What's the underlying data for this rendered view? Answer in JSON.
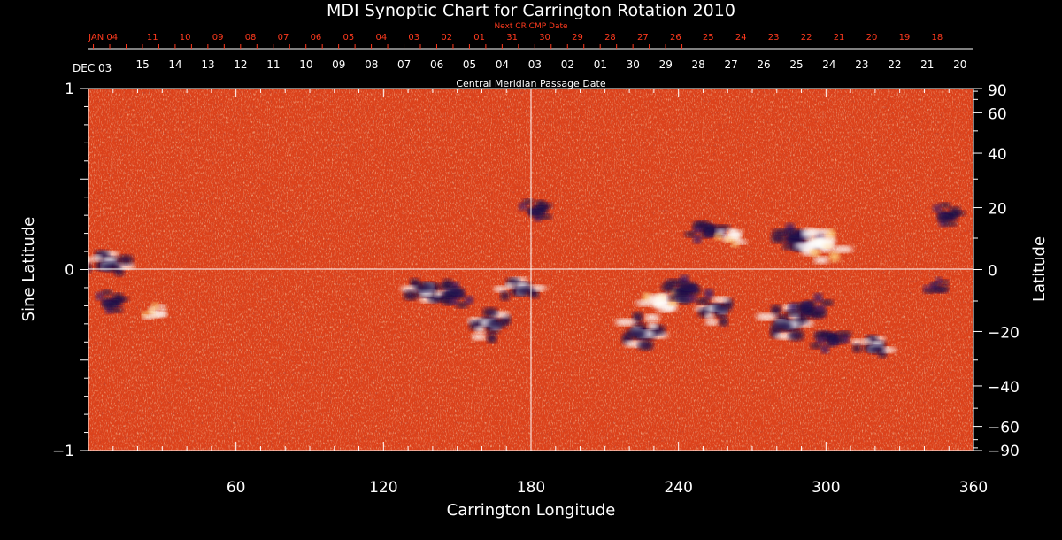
{
  "chart_data": {
    "type": "heatmap",
    "title": "MDI Synoptic Chart for Carrington Rotation 2010",
    "xlabel": "Carrington Longitude",
    "ylabel_left": "Sine Latitude",
    "ylabel_right": "Latitude",
    "xlim": [
      0,
      360
    ],
    "ylim": [
      -1,
      1
    ],
    "x_ticks": [
      60,
      120,
      180,
      240,
      300,
      360
    ],
    "y_left_ticks": [
      1,
      0,
      -1
    ],
    "y_right_ticks": [
      90,
      60,
      40,
      20,
      0,
      -20,
      -40,
      -60,
      -90
    ],
    "y_left_labels": [
      "1",
      "0",
      "−1"
    ],
    "y_right_labels": [
      "90",
      "60",
      "40",
      "20",
      "0",
      "−20",
      "−40",
      "−60",
      "−90"
    ],
    "cmp_axis_label": "Central Meridian Passage Date",
    "next_cmp_axis_label": "Next CR CMP Date",
    "cmp_dates": [
      {
        "lon": 0,
        "label": "DEC 03"
      },
      {
        "lon": 22,
        "label": "15"
      },
      {
        "lon": 35.3,
        "label": "14"
      },
      {
        "lon": 48.6,
        "label": "13"
      },
      {
        "lon": 61.9,
        "label": "12"
      },
      {
        "lon": 75.2,
        "label": "11"
      },
      {
        "lon": 88.5,
        "label": "10"
      },
      {
        "lon": 101.8,
        "label": "09"
      },
      {
        "lon": 115.1,
        "label": "08"
      },
      {
        "lon": 128.4,
        "label": "07"
      },
      {
        "lon": 141.7,
        "label": "06"
      },
      {
        "lon": 155,
        "label": "05"
      },
      {
        "lon": 168.3,
        "label": "04"
      },
      {
        "lon": 181.6,
        "label": "03"
      },
      {
        "lon": 194.9,
        "label": "02"
      },
      {
        "lon": 208.2,
        "label": "01"
      },
      {
        "lon": 221.5,
        "label": "30"
      },
      {
        "lon": 234.8,
        "label": "29"
      },
      {
        "lon": 248.1,
        "label": "28"
      },
      {
        "lon": 261.4,
        "label": "27"
      },
      {
        "lon": 274.7,
        "label": "26"
      },
      {
        "lon": 288,
        "label": "25"
      },
      {
        "lon": 301.3,
        "label": "24"
      },
      {
        "lon": 314.6,
        "label": "23"
      },
      {
        "lon": 327.9,
        "label": "22"
      },
      {
        "lon": 341.2,
        "label": "21"
      },
      {
        "lon": 354.5,
        "label": "20"
      }
    ],
    "next_cmp_dates": [
      {
        "lon": 6,
        "label": "JAN 04"
      },
      {
        "lon": 26,
        "label": "11"
      },
      {
        "lon": 39.3,
        "label": "10"
      },
      {
        "lon": 52.6,
        "label": "09"
      },
      {
        "lon": 65.9,
        "label": "08"
      },
      {
        "lon": 79.2,
        "label": "07"
      },
      {
        "lon": 92.5,
        "label": "06"
      },
      {
        "lon": 105.8,
        "label": "05"
      },
      {
        "lon": 119.1,
        "label": "04"
      },
      {
        "lon": 132.4,
        "label": "03"
      },
      {
        "lon": 145.7,
        "label": "02"
      },
      {
        "lon": 159,
        "label": "01"
      },
      {
        "lon": 172.3,
        "label": "31"
      },
      {
        "lon": 185.6,
        "label": "30"
      },
      {
        "lon": 198.9,
        "label": "29"
      },
      {
        "lon": 212.2,
        "label": "28"
      },
      {
        "lon": 225.5,
        "label": "27"
      },
      {
        "lon": 238.8,
        "label": "26"
      },
      {
        "lon": 252.1,
        "label": "25"
      },
      {
        "lon": 265.4,
        "label": "24"
      },
      {
        "lon": 278.7,
        "label": "23"
      },
      {
        "lon": 292,
        "label": "22"
      },
      {
        "lon": 305.3,
        "label": "21"
      },
      {
        "lon": 318.6,
        "label": "20"
      },
      {
        "lon": 331.9,
        "label": "19"
      },
      {
        "lon": 345.2,
        "label": "18"
      }
    ],
    "active_regions": [
      {
        "lon": 8,
        "sinlat": 0.04,
        "polarity": "mixed",
        "strength": 0.9
      },
      {
        "lon": 10,
        "sinlat": -0.18,
        "polarity": "negative",
        "strength": 0.6
      },
      {
        "lon": 27,
        "sinlat": -0.24,
        "polarity": "positive",
        "strength": 0.4
      },
      {
        "lon": 138,
        "sinlat": -0.12,
        "polarity": "mixed",
        "strength": 0.9
      },
      {
        "lon": 148,
        "sinlat": -0.14,
        "polarity": "negative",
        "strength": 0.7
      },
      {
        "lon": 163,
        "sinlat": -0.3,
        "polarity": "mixed",
        "strength": 0.9
      },
      {
        "lon": 176,
        "sinlat": -0.1,
        "polarity": "mixed",
        "strength": 0.8
      },
      {
        "lon": 183,
        "sinlat": 0.33,
        "polarity": "negative",
        "strength": 0.6
      },
      {
        "lon": 226,
        "sinlat": -0.35,
        "polarity": "mixed",
        "strength": 1.0
      },
      {
        "lon": 233,
        "sinlat": -0.18,
        "polarity": "positive",
        "strength": 0.8
      },
      {
        "lon": 243,
        "sinlat": -0.12,
        "polarity": "negative",
        "strength": 0.9
      },
      {
        "lon": 255,
        "sinlat": -0.22,
        "polarity": "mixed",
        "strength": 0.8
      },
      {
        "lon": 252,
        "sinlat": 0.22,
        "polarity": "negative",
        "strength": 0.7
      },
      {
        "lon": 262,
        "sinlat": 0.18,
        "polarity": "positive",
        "strength": 0.5
      },
      {
        "lon": 285,
        "sinlat": -0.3,
        "polarity": "mixed",
        "strength": 1.0
      },
      {
        "lon": 293,
        "sinlat": -0.22,
        "polarity": "negative",
        "strength": 0.8
      },
      {
        "lon": 288,
        "sinlat": 0.17,
        "polarity": "negative",
        "strength": 0.9
      },
      {
        "lon": 297,
        "sinlat": 0.14,
        "polarity": "positive",
        "strength": 1.0
      },
      {
        "lon": 302,
        "sinlat": -0.38,
        "polarity": "negative",
        "strength": 0.7
      },
      {
        "lon": 320,
        "sinlat": -0.42,
        "polarity": "mixed",
        "strength": 0.7
      },
      {
        "lon": 350,
        "sinlat": 0.3,
        "polarity": "negative",
        "strength": 0.6
      },
      {
        "lon": 345,
        "sinlat": -0.1,
        "polarity": "negative",
        "strength": 0.4
      }
    ],
    "colors": {
      "background_field": "#e8491c",
      "positive": "#ffffff",
      "negative": "#1a0d4a",
      "axes": "#ffffff",
      "date_labels_top": "#ff3a1e"
    },
    "grid": "center lines"
  }
}
